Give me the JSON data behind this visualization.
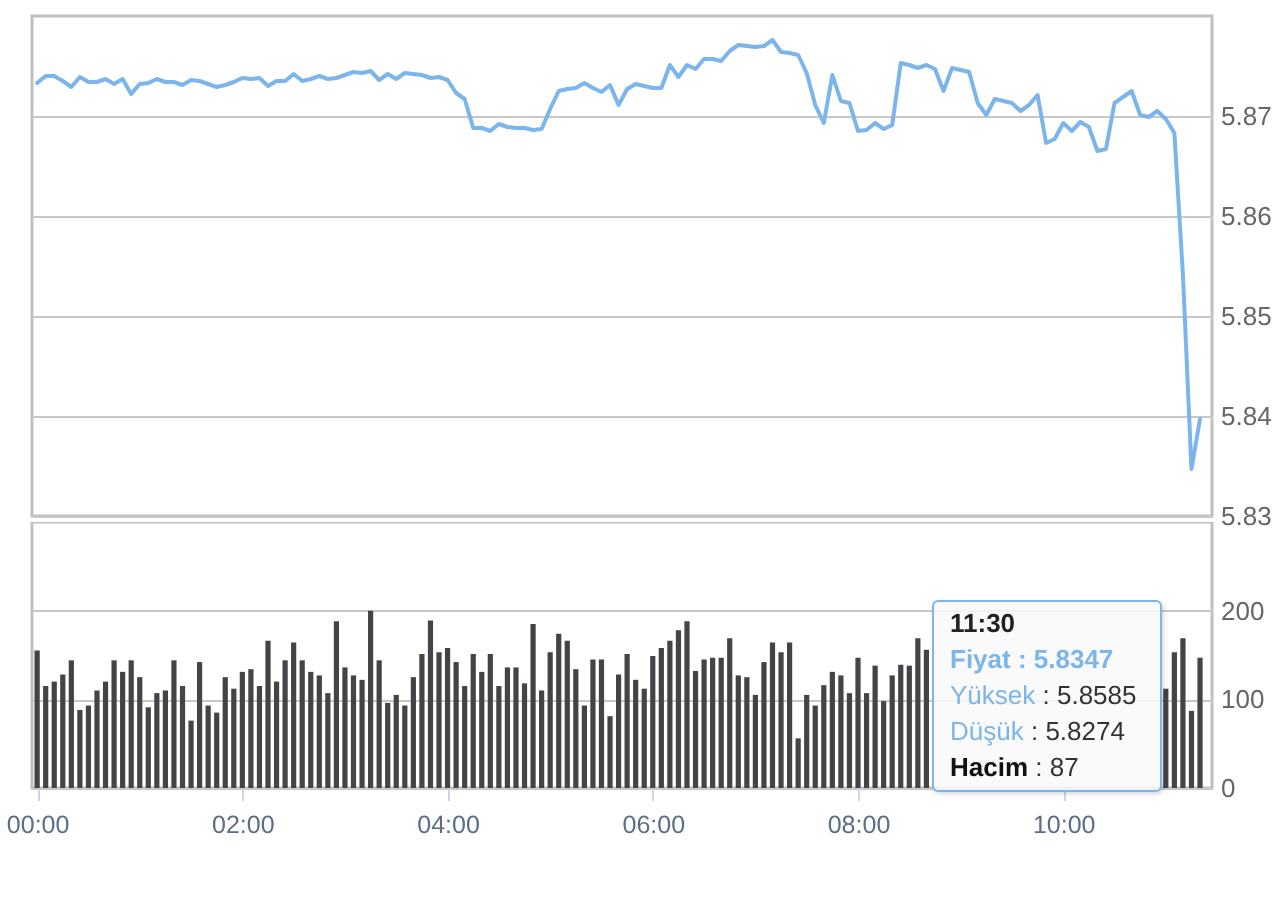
{
  "chart_data": [
    {
      "type": "line",
      "x": [
        0,
        0.0833,
        0.1667,
        0.25,
        0.3333,
        0.4167,
        0.5,
        0.5833,
        0.6667,
        0.75,
        0.8333,
        0.9167,
        1,
        1.0833,
        1.1667,
        1.25,
        1.3333,
        1.4167,
        1.5,
        1.5833,
        1.6667,
        1.75,
        1.8333,
        1.9167,
        2,
        2.0833,
        2.1667,
        2.25,
        2.3333,
        2.4167,
        2.5,
        2.5833,
        2.6667,
        2.75,
        2.8333,
        2.9167,
        3,
        3.0833,
        3.1667,
        3.25,
        3.3333,
        3.4167,
        3.5,
        3.5833,
        3.6667,
        3.75,
        3.8333,
        3.9167,
        4,
        4.0833,
        4.1667,
        4.25,
        4.3333,
        4.4167,
        4.5,
        4.5833,
        4.6667,
        4.75,
        4.8333,
        4.9167,
        5,
        5.0833,
        5.1667,
        5.25,
        5.3333,
        5.4167,
        5.5,
        5.5833,
        5.6667,
        5.75,
        5.8333,
        5.9167,
        6,
        6.0833,
        6.1667,
        6.25,
        6.3333,
        6.4167,
        6.5,
        6.5833,
        6.6667,
        6.75,
        6.8333,
        6.9167,
        7,
        7.0833,
        7.1667,
        7.25,
        7.3333,
        7.4167,
        7.5,
        7.5833,
        7.6667,
        7.75,
        7.8333,
        7.9167,
        8,
        8.0833,
        8.1667,
        8.25,
        8.3333,
        8.4167,
        8.5,
        8.5833,
        8.6667,
        8.75,
        8.8333,
        8.9167,
        9,
        9.0833,
        9.1667,
        9.25,
        9.3333,
        9.4167,
        9.5,
        9.5833,
        9.6667,
        9.75,
        9.8333,
        9.9167,
        10,
        10.0833,
        10.1667,
        10.25,
        10.3333,
        10.4167,
        10.5,
        10.5833,
        10.6667,
        10.75,
        10.8333,
        10.9167,
        11,
        11.0833,
        11.1667,
        11.25,
        11.3333
      ],
      "series": [
        {
          "color": "#7cb5ec",
          "values": [
            5.8733,
            5.874,
            5.874,
            5.8735,
            5.8729,
            5.8739,
            5.8734,
            5.8734,
            5.8737,
            5.8732,
            5.8737,
            5.8722,
            5.8732,
            5.8733,
            5.8737,
            5.8734,
            5.8734,
            5.8731,
            5.8736,
            5.8735,
            5.8732,
            5.8729,
            5.8731,
            5.8734,
            5.8738,
            5.8737,
            5.8738,
            5.873,
            5.8735,
            5.8735,
            5.8742,
            5.8735,
            5.8737,
            5.874,
            5.8737,
            5.8738,
            5.8741,
            5.8744,
            5.8743,
            5.8745,
            5.8736,
            5.8742,
            5.8737,
            5.8743,
            5.8742,
            5.8741,
            5.8738,
            5.8739,
            5.8736,
            5.8723,
            5.8717,
            5.8688,
            5.8688,
            5.8685,
            5.8692,
            5.8689,
            5.8688,
            5.8688,
            5.8686,
            5.8687,
            5.8707,
            5.8725,
            5.8727,
            5.8728,
            5.8733,
            5.8728,
            5.8724,
            5.8731,
            5.8711,
            5.8727,
            5.8732,
            5.873,
            5.8728,
            5.8728,
            5.8751,
            5.8739,
            5.8751,
            5.8747,
            5.8757,
            5.8757,
            5.8755,
            5.8765,
            5.8771,
            5.877,
            5.8769,
            5.877,
            5.8776,
            5.8764,
            5.8763,
            5.8761,
            5.8743,
            5.8711,
            5.8693,
            5.8741,
            5.8715,
            5.8713,
            5.8685,
            5.8686,
            5.8693,
            5.8687,
            5.8691,
            5.8753,
            5.8751,
            5.8748,
            5.8751,
            5.8747,
            5.8725,
            5.8748,
            5.8746,
            5.8744,
            5.8713,
            5.8701,
            5.8717,
            5.8715,
            5.8713,
            5.8705,
            5.8711,
            5.8721,
            5.8673,
            5.8677,
            5.8693,
            5.8685,
            5.8694,
            5.8689,
            5.8665,
            5.8667,
            5.8713,
            5.8719,
            5.8725,
            5.8701,
            5.8699,
            5.8705,
            5.8697,
            5.8683,
            5.8541,
            5.8347,
            5.8397
          ]
        }
      ],
      "xlim": [
        -0.05,
        11.45
      ],
      "ylim": [
        5.83,
        5.88
      ],
      "yticks": [
        5.83,
        5.84,
        5.85,
        5.86,
        5.87
      ],
      "grid": "y",
      "tick_labels": "y",
      "line_style": "solid",
      "annotations": [
        "11:30",
        "Fiyat : 5.8347",
        "Yüksek : 5.8585",
        "Düşük : 5.8274",
        "Hacim : 87"
      ]
    },
    {
      "type": "bar",
      "x": [
        0,
        0.0833,
        0.1667,
        0.25,
        0.3333,
        0.4167,
        0.5,
        0.5833,
        0.6667,
        0.75,
        0.8333,
        0.9167,
        1,
        1.0833,
        1.1667,
        1.25,
        1.3333,
        1.4167,
        1.5,
        1.5833,
        1.6667,
        1.75,
        1.8333,
        1.9167,
        2,
        2.0833,
        2.1667,
        2.25,
        2.3333,
        2.4167,
        2.5,
        2.5833,
        2.6667,
        2.75,
        2.8333,
        2.9167,
        3,
        3.0833,
        3.1667,
        3.25,
        3.3333,
        3.4167,
        3.5,
        3.5833,
        3.6667,
        3.75,
        3.8333,
        3.9167,
        4,
        4.0833,
        4.1667,
        4.25,
        4.3333,
        4.4167,
        4.5,
        4.5833,
        4.6667,
        4.75,
        4.8333,
        4.9167,
        5,
        5.0833,
        5.1667,
        5.25,
        5.3333,
        5.4167,
        5.5,
        5.5833,
        5.6667,
        5.75,
        5.8333,
        5.9167,
        6,
        6.0833,
        6.1667,
        6.25,
        6.3333,
        6.4167,
        6.5,
        6.5833,
        6.6667,
        6.75,
        6.8333,
        6.9167,
        7,
        7.0833,
        7.1667,
        7.25,
        7.3333,
        7.4167,
        7.5,
        7.5833,
        7.6667,
        7.75,
        7.8333,
        7.9167,
        8,
        8.0833,
        8.1667,
        8.25,
        8.3333,
        8.4167,
        8.5,
        8.5833,
        8.6667,
        8.75,
        8.8333,
        8.9167,
        9,
        9.0833,
        9.1667,
        9.25,
        9.3333,
        9.4167,
        9.5,
        9.5833,
        9.6667,
        9.75,
        9.8333,
        9.9167,
        10,
        10.0833,
        10.1667,
        10.25,
        10.3333,
        10.4167,
        10.5,
        10.5833,
        10.6667,
        10.75,
        10.8333,
        10.9167,
        11,
        11.0833,
        11.1667,
        11.25,
        11.3333
      ],
      "series": [
        {
          "color": "#434348",
          "values": [
            155,
            115,
            120,
            128,
            144,
            88,
            93,
            110,
            120,
            144,
            131,
            144,
            125,
            91,
            107,
            110,
            144,
            115,
            76,
            142,
            93,
            85,
            125,
            112,
            131,
            134,
            115,
            166,
            120,
            144,
            164,
            144,
            131,
            127,
            107,
            188,
            136,
            127,
            122,
            200,
            144,
            96,
            105,
            93,
            125,
            151,
            189,
            153,
            158,
            142,
            115,
            151,
            131,
            151,
            115,
            136,
            136,
            118,
            185,
            110,
            153,
            174,
            166,
            134,
            93,
            145,
            145,
            81,
            128,
            151,
            122,
            112,
            149,
            158,
            166,
            178,
            188,
            132,
            145,
            147,
            147,
            169,
            127,
            125,
            105,
            142,
            164,
            153,
            164,
            56,
            105,
            93,
            116,
            131,
            127,
            107,
            147,
            107,
            138,
            98,
            127,
            139,
            138,
            169,
            156,
            null,
            null,
            null,
            null,
            null,
            null,
            null,
            null,
            null,
            null,
            null,
            null,
            null,
            null,
            null,
            null,
            null,
            null,
            null,
            null,
            null,
            null,
            null,
            null,
            null,
            null,
            null,
            112,
            153,
            169,
            87,
            147
          ]
        }
      ],
      "xlim": [
        -0.05,
        11.45
      ],
      "ylim": [
        0,
        300
      ],
      "yticks": [
        0,
        100,
        200
      ],
      "grid": "y",
      "xticks": [
        {
          "value": 0,
          "label": "00:00"
        },
        {
          "value": 2,
          "label": "02:00"
        },
        {
          "value": 4,
          "label": "04:00"
        },
        {
          "value": 6,
          "label": "06:00"
        },
        {
          "value": 8,
          "label": "08:00"
        },
        {
          "value": 10,
          "label": "10:00"
        }
      ]
    }
  ]
}
